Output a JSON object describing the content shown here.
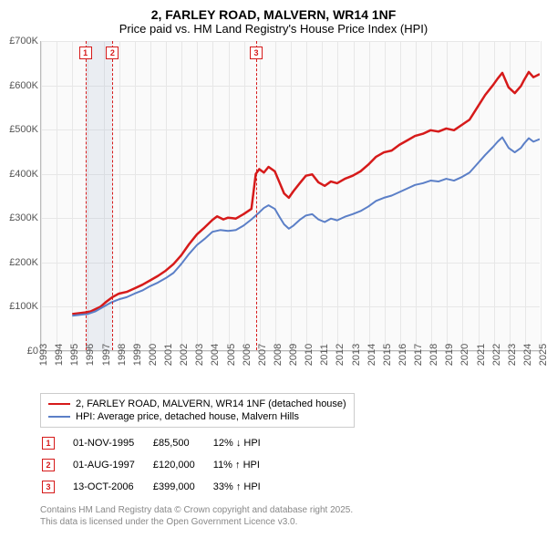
{
  "title": "2, FARLEY ROAD, MALVERN, WR14 1NF",
  "subtitle": "Price paid vs. HM Land Registry's House Price Index (HPI)",
  "chart": {
    "type": "line",
    "x_years": [
      1993,
      1994,
      1995,
      1996,
      1997,
      1998,
      1999,
      2000,
      2001,
      2002,
      2003,
      2004,
      2005,
      2006,
      2007,
      2008,
      2009,
      2010,
      2011,
      2012,
      2013,
      2014,
      2015,
      2016,
      2017,
      2018,
      2019,
      2020,
      2021,
      2022,
      2023,
      2024,
      2025
    ],
    "ylim": [
      0,
      700000
    ],
    "ytick_step": 100000,
    "ytick_labels": [
      "£0",
      "£100K",
      "£200K",
      "£300K",
      "£400K",
      "£500K",
      "£600K",
      "£700K"
    ],
    "grid_color": "#e7e7e7",
    "background_color": "#fafafa",
    "series": [
      {
        "name": "2, FARLEY ROAD, MALVERN, WR14 1NF (detached house)",
        "color": "#d61a1a",
        "width": 2.5,
        "points": [
          [
            1995.0,
            82000
          ],
          [
            1995.5,
            84000
          ],
          [
            1995.84,
            85500
          ],
          [
            1996.2,
            88000
          ],
          [
            1996.8,
            98000
          ],
          [
            1997.2,
            110000
          ],
          [
            1997.58,
            120000
          ],
          [
            1998,
            128000
          ],
          [
            1998.5,
            132000
          ],
          [
            1999,
            140000
          ],
          [
            1999.5,
            148000
          ],
          [
            2000,
            158000
          ],
          [
            2000.5,
            168000
          ],
          [
            2001,
            180000
          ],
          [
            2001.5,
            195000
          ],
          [
            2002,
            215000
          ],
          [
            2002.5,
            240000
          ],
          [
            2003,
            262000
          ],
          [
            2003.5,
            278000
          ],
          [
            2004,
            295000
          ],
          [
            2004.3,
            303000
          ],
          [
            2004.7,
            296000
          ],
          [
            2005,
            300000
          ],
          [
            2005.5,
            298000
          ],
          [
            2006,
            308000
          ],
          [
            2006.5,
            320000
          ],
          [
            2006.78,
            399000
          ],
          [
            2007,
            410000
          ],
          [
            2007.3,
            402000
          ],
          [
            2007.6,
            415000
          ],
          [
            2008,
            405000
          ],
          [
            2008.3,
            380000
          ],
          [
            2008.6,
            355000
          ],
          [
            2008.9,
            345000
          ],
          [
            2009.2,
            360000
          ],
          [
            2009.6,
            378000
          ],
          [
            2010,
            395000
          ],
          [
            2010.4,
            398000
          ],
          [
            2010.8,
            380000
          ],
          [
            2011.2,
            372000
          ],
          [
            2011.6,
            382000
          ],
          [
            2012,
            378000
          ],
          [
            2012.5,
            388000
          ],
          [
            2013,
            395000
          ],
          [
            2013.5,
            405000
          ],
          [
            2014,
            420000
          ],
          [
            2014.5,
            438000
          ],
          [
            2015,
            448000
          ],
          [
            2015.5,
            452000
          ],
          [
            2016,
            465000
          ],
          [
            2016.5,
            475000
          ],
          [
            2017,
            485000
          ],
          [
            2017.5,
            490000
          ],
          [
            2018,
            498000
          ],
          [
            2018.5,
            495000
          ],
          [
            2019,
            502000
          ],
          [
            2019.5,
            498000
          ],
          [
            2020,
            510000
          ],
          [
            2020.5,
            522000
          ],
          [
            2021,
            550000
          ],
          [
            2021.5,
            578000
          ],
          [
            2022,
            600000
          ],
          [
            2022.3,
            615000
          ],
          [
            2022.6,
            628000
          ],
          [
            2023,
            595000
          ],
          [
            2023.4,
            582000
          ],
          [
            2023.8,
            598000
          ],
          [
            2024,
            612000
          ],
          [
            2024.3,
            630000
          ],
          [
            2024.6,
            618000
          ],
          [
            2025,
            625000
          ]
        ]
      },
      {
        "name": "HPI: Average price, detached house, Malvern Hills",
        "color": "#5b7fc7",
        "width": 2,
        "points": [
          [
            1995.0,
            78000
          ],
          [
            1995.5,
            80000
          ],
          [
            1996,
            82000
          ],
          [
            1996.5,
            88000
          ],
          [
            1997,
            98000
          ],
          [
            1997.5,
            108000
          ],
          [
            1998,
            115000
          ],
          [
            1998.5,
            120000
          ],
          [
            1999,
            128000
          ],
          [
            1999.5,
            135000
          ],
          [
            2000,
            145000
          ],
          [
            2000.5,
            153000
          ],
          [
            2001,
            163000
          ],
          [
            2001.5,
            175000
          ],
          [
            2002,
            195000
          ],
          [
            2002.5,
            218000
          ],
          [
            2003,
            238000
          ],
          [
            2003.5,
            252000
          ],
          [
            2004,
            268000
          ],
          [
            2004.5,
            272000
          ],
          [
            2005,
            270000
          ],
          [
            2005.5,
            272000
          ],
          [
            2006,
            282000
          ],
          [
            2006.5,
            296000
          ],
          [
            2007,
            312000
          ],
          [
            2007.3,
            322000
          ],
          [
            2007.6,
            328000
          ],
          [
            2008,
            320000
          ],
          [
            2008.3,
            302000
          ],
          [
            2008.6,
            285000
          ],
          [
            2008.9,
            275000
          ],
          [
            2009.2,
            282000
          ],
          [
            2009.6,
            295000
          ],
          [
            2010,
            305000
          ],
          [
            2010.4,
            308000
          ],
          [
            2010.8,
            296000
          ],
          [
            2011.2,
            290000
          ],
          [
            2011.6,
            298000
          ],
          [
            2012,
            294000
          ],
          [
            2012.5,
            302000
          ],
          [
            2013,
            308000
          ],
          [
            2013.5,
            315000
          ],
          [
            2014,
            325000
          ],
          [
            2014.5,
            338000
          ],
          [
            2015,
            345000
          ],
          [
            2015.5,
            350000
          ],
          [
            2016,
            358000
          ],
          [
            2016.5,
            366000
          ],
          [
            2017,
            374000
          ],
          [
            2017.5,
            378000
          ],
          [
            2018,
            384000
          ],
          [
            2018.5,
            382000
          ],
          [
            2019,
            388000
          ],
          [
            2019.5,
            384000
          ],
          [
            2020,
            392000
          ],
          [
            2020.5,
            402000
          ],
          [
            2021,
            422000
          ],
          [
            2021.5,
            442000
          ],
          [
            2022,
            460000
          ],
          [
            2022.3,
            472000
          ],
          [
            2022.6,
            482000
          ],
          [
            2023,
            458000
          ],
          [
            2023.4,
            448000
          ],
          [
            2023.8,
            458000
          ],
          [
            2024,
            468000
          ],
          [
            2024.3,
            480000
          ],
          [
            2024.6,
            472000
          ],
          [
            2025,
            478000
          ]
        ]
      }
    ],
    "markers": [
      {
        "n": "1",
        "x": 1995.84,
        "color": "#d61a1a"
      },
      {
        "n": "2",
        "x": 1997.58,
        "color": "#d61a1a"
      },
      {
        "n": "3",
        "x": 2006.78,
        "color": "#d61a1a"
      }
    ],
    "marker_band": {
      "from": 1995.84,
      "to": 1997.58
    }
  },
  "legend": [
    {
      "color": "#d61a1a",
      "label": "2, FARLEY ROAD, MALVERN, WR14 1NF (detached house)"
    },
    {
      "color": "#5b7fc7",
      "label": "HPI: Average price, detached house, Malvern Hills"
    }
  ],
  "transactions": [
    {
      "n": "1",
      "color": "#d61a1a",
      "date": "01-NOV-1995",
      "price": "£85,500",
      "delta": "12% ↓ HPI"
    },
    {
      "n": "2",
      "color": "#d61a1a",
      "date": "01-AUG-1997",
      "price": "£120,000",
      "delta": "11% ↑ HPI"
    },
    {
      "n": "3",
      "color": "#d61a1a",
      "date": "13-OCT-2006",
      "price": "£399,000",
      "delta": "33% ↑ HPI"
    }
  ],
  "attribution": {
    "l1": "Contains HM Land Registry data © Crown copyright and database right 2025.",
    "l2": "This data is licensed under the Open Government Licence v3.0."
  }
}
